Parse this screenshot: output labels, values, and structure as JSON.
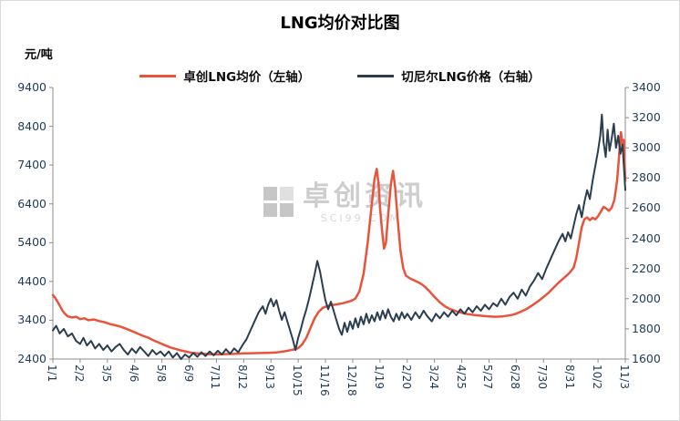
{
  "title": "LNG均价对比图",
  "y_unit_label": "元/吨",
  "legend": [
    {
      "label": "卓创LNG均价（左轴）",
      "color": "#e8533b"
    },
    {
      "label": "切尼尔LNG价格（右轴）",
      "color": "#2a3e50"
    }
  ],
  "watermark": {
    "text": "卓创资讯",
    "subtext": "SCI99.COM"
  },
  "chart_data": {
    "type": "line",
    "title": "LNG均价对比图",
    "ylabel_left": "元/吨",
    "legend_position": "top",
    "grid": false,
    "x_tick_labels": [
      "1/1",
      "2/2",
      "3/5",
      "4/6",
      "5/8",
      "6/9",
      "7/11",
      "8/12",
      "9/13",
      "10/15",
      "11/16",
      "12/18",
      "1/19",
      "2/20",
      "3/24",
      "4/25",
      "5/27",
      "6/28",
      "7/30",
      "8/31",
      "10/2",
      "11/3"
    ],
    "left_axis": {
      "min": 2400,
      "max": 9400,
      "ticks": [
        2400,
        3400,
        4400,
        5400,
        6400,
        7400,
        8400,
        9400
      ]
    },
    "right_axis": {
      "min": 1600,
      "max": 3400,
      "ticks": [
        1600,
        1800,
        2000,
        2200,
        2400,
        2600,
        2800,
        3000,
        3200,
        3400
      ]
    },
    "series": [
      {
        "name": "卓创LNG均价（左轴）",
        "axis": "left",
        "color": "#e8533b",
        "points": [
          [
            0,
            4050
          ],
          [
            0.08,
            3980
          ],
          [
            0.15,
            3900
          ],
          [
            0.25,
            3780
          ],
          [
            0.35,
            3650
          ],
          [
            0.45,
            3560
          ],
          [
            0.55,
            3500
          ],
          [
            0.7,
            3470
          ],
          [
            0.85,
            3490
          ],
          [
            1.0,
            3430
          ],
          [
            1.15,
            3450
          ],
          [
            1.3,
            3400
          ],
          [
            1.5,
            3420
          ],
          [
            1.7,
            3380
          ],
          [
            1.9,
            3350
          ],
          [
            2.1,
            3300
          ],
          [
            2.3,
            3270
          ],
          [
            2.5,
            3230
          ],
          [
            2.7,
            3180
          ],
          [
            2.9,
            3120
          ],
          [
            3.1,
            3060
          ],
          [
            3.3,
            3000
          ],
          [
            3.5,
            2950
          ],
          [
            3.7,
            2880
          ],
          [
            3.9,
            2820
          ],
          [
            4.1,
            2760
          ],
          [
            4.3,
            2700
          ],
          [
            4.5,
            2660
          ],
          [
            4.7,
            2620
          ],
          [
            4.9,
            2590
          ],
          [
            5.1,
            2560
          ],
          [
            5.3,
            2545
          ],
          [
            5.5,
            2535
          ],
          [
            5.8,
            2525
          ],
          [
            6.1,
            2520
          ],
          [
            6.4,
            2530
          ],
          [
            6.7,
            2535
          ],
          [
            7.0,
            2545
          ],
          [
            7.3,
            2550
          ],
          [
            7.6,
            2555
          ],
          [
            7.9,
            2560
          ],
          [
            8.2,
            2570
          ],
          [
            8.5,
            2600
          ],
          [
            8.8,
            2640
          ],
          [
            9.0,
            2680
          ],
          [
            9.15,
            2780
          ],
          [
            9.3,
            2950
          ],
          [
            9.45,
            3200
          ],
          [
            9.6,
            3450
          ],
          [
            9.75,
            3620
          ],
          [
            9.9,
            3720
          ],
          [
            10.05,
            3760
          ],
          [
            10.2,
            3790
          ],
          [
            10.35,
            3800
          ],
          [
            10.5,
            3820
          ],
          [
            10.65,
            3840
          ],
          [
            10.8,
            3870
          ],
          [
            10.95,
            3900
          ],
          [
            11.1,
            3960
          ],
          [
            11.25,
            4150
          ],
          [
            11.4,
            4600
          ],
          [
            11.55,
            5400
          ],
          [
            11.7,
            6400
          ],
          [
            11.8,
            7050
          ],
          [
            11.88,
            7300
          ],
          [
            11.95,
            6900
          ],
          [
            12.0,
            6300
          ],
          [
            12.08,
            5700
          ],
          [
            12.15,
            5250
          ],
          [
            12.22,
            5400
          ],
          [
            12.3,
            6100
          ],
          [
            12.4,
            6900
          ],
          [
            12.48,
            7250
          ],
          [
            12.56,
            6800
          ],
          [
            12.65,
            6000
          ],
          [
            12.75,
            5200
          ],
          [
            12.85,
            4750
          ],
          [
            12.95,
            4550
          ],
          [
            13.1,
            4480
          ],
          [
            13.25,
            4430
          ],
          [
            13.4,
            4380
          ],
          [
            13.55,
            4320
          ],
          [
            13.7,
            4230
          ],
          [
            13.85,
            4120
          ],
          [
            14.0,
            4000
          ],
          [
            14.2,
            3860
          ],
          [
            14.4,
            3750
          ],
          [
            14.6,
            3680
          ],
          [
            14.8,
            3630
          ],
          [
            15.0,
            3590
          ],
          [
            15.2,
            3560
          ],
          [
            15.5,
            3530
          ],
          [
            15.8,
            3510
          ],
          [
            16.0,
            3500
          ],
          [
            16.2,
            3490
          ],
          [
            16.5,
            3500
          ],
          [
            16.8,
            3530
          ],
          [
            17.0,
            3570
          ],
          [
            17.2,
            3630
          ],
          [
            17.4,
            3700
          ],
          [
            17.6,
            3790
          ],
          [
            17.8,
            3890
          ],
          [
            18.0,
            4000
          ],
          [
            18.2,
            4120
          ],
          [
            18.4,
            4260
          ],
          [
            18.6,
            4400
          ],
          [
            18.8,
            4520
          ],
          [
            18.95,
            4620
          ],
          [
            19.1,
            4750
          ],
          [
            19.2,
            5000
          ],
          [
            19.3,
            5400
          ],
          [
            19.4,
            5800
          ],
          [
            19.5,
            6000
          ],
          [
            19.6,
            6050
          ],
          [
            19.7,
            5980
          ],
          [
            19.8,
            6040
          ],
          [
            19.9,
            6000
          ],
          [
            20.0,
            6080
          ],
          [
            20.1,
            6200
          ],
          [
            20.2,
            6320
          ],
          [
            20.3,
            6280
          ],
          [
            20.4,
            6220
          ],
          [
            20.5,
            6300
          ],
          [
            20.6,
            6500
          ],
          [
            20.7,
            7000
          ],
          [
            20.78,
            7700
          ],
          [
            20.84,
            8250
          ],
          [
            20.9,
            7900
          ],
          [
            20.94,
            8050
          ],
          [
            21.0,
            7000
          ]
        ]
      },
      {
        "name": "切尼尔LNG价格（右轴）",
        "axis": "right",
        "color": "#2a3e50",
        "points": [
          [
            0,
            1790
          ],
          [
            0.12,
            1820
          ],
          [
            0.25,
            1770
          ],
          [
            0.4,
            1800
          ],
          [
            0.55,
            1750
          ],
          [
            0.7,
            1770
          ],
          [
            0.85,
            1720
          ],
          [
            1.0,
            1700
          ],
          [
            1.12,
            1740
          ],
          [
            1.25,
            1690
          ],
          [
            1.4,
            1720
          ],
          [
            1.55,
            1670
          ],
          [
            1.7,
            1700
          ],
          [
            1.85,
            1660
          ],
          [
            2.0,
            1690
          ],
          [
            2.15,
            1650
          ],
          [
            2.3,
            1680
          ],
          [
            2.45,
            1700
          ],
          [
            2.6,
            1660
          ],
          [
            2.75,
            1630
          ],
          [
            2.9,
            1670
          ],
          [
            3.05,
            1640
          ],
          [
            3.2,
            1680
          ],
          [
            3.35,
            1650
          ],
          [
            3.5,
            1620
          ],
          [
            3.65,
            1660
          ],
          [
            3.8,
            1630
          ],
          [
            3.95,
            1650
          ],
          [
            4.1,
            1620
          ],
          [
            4.25,
            1650
          ],
          [
            4.4,
            1610
          ],
          [
            4.55,
            1640
          ],
          [
            4.7,
            1600
          ],
          [
            4.85,
            1630
          ],
          [
            5.0,
            1610
          ],
          [
            5.15,
            1640
          ],
          [
            5.3,
            1615
          ],
          [
            5.45,
            1645
          ],
          [
            5.6,
            1620
          ],
          [
            5.75,
            1650
          ],
          [
            5.9,
            1625
          ],
          [
            6.05,
            1655
          ],
          [
            6.2,
            1630
          ],
          [
            6.35,
            1665
          ],
          [
            6.5,
            1635
          ],
          [
            6.65,
            1670
          ],
          [
            6.8,
            1645
          ],
          [
            6.95,
            1690
          ],
          [
            7.1,
            1730
          ],
          [
            7.25,
            1790
          ],
          [
            7.4,
            1850
          ],
          [
            7.55,
            1910
          ],
          [
            7.7,
            1950
          ],
          [
            7.8,
            1900
          ],
          [
            7.9,
            1960
          ],
          [
            8.0,
            2000
          ],
          [
            8.1,
            1950
          ],
          [
            8.2,
            1990
          ],
          [
            8.3,
            1920
          ],
          [
            8.4,
            1860
          ],
          [
            8.5,
            1910
          ],
          [
            8.6,
            1850
          ],
          [
            8.7,
            1790
          ],
          [
            8.8,
            1730
          ],
          [
            8.9,
            1660
          ],
          [
            9.0,
            1740
          ],
          [
            9.1,
            1800
          ],
          [
            9.2,
            1870
          ],
          [
            9.3,
            1930
          ],
          [
            9.4,
            2000
          ],
          [
            9.5,
            2080
          ],
          [
            9.6,
            2160
          ],
          [
            9.7,
            2250
          ],
          [
            9.8,
            2180
          ],
          [
            9.9,
            2080
          ],
          [
            10.0,
            1990
          ],
          [
            10.1,
            1930
          ],
          [
            10.2,
            1980
          ],
          [
            10.3,
            1920
          ],
          [
            10.4,
            1860
          ],
          [
            10.5,
            1800
          ],
          [
            10.6,
            1760
          ],
          [
            10.7,
            1840
          ],
          [
            10.8,
            1780
          ],
          [
            10.9,
            1850
          ],
          [
            11.0,
            1800
          ],
          [
            11.1,
            1870
          ],
          [
            11.2,
            1810
          ],
          [
            11.3,
            1880
          ],
          [
            11.4,
            1830
          ],
          [
            11.5,
            1900
          ],
          [
            11.6,
            1840
          ],
          [
            11.7,
            1890
          ],
          [
            11.8,
            1850
          ],
          [
            11.9,
            1910
          ],
          [
            12.0,
            1860
          ],
          [
            12.1,
            1920
          ],
          [
            12.2,
            1870
          ],
          [
            12.3,
            1930
          ],
          [
            12.4,
            1880
          ],
          [
            12.5,
            1850
          ],
          [
            12.6,
            1900
          ],
          [
            12.7,
            1860
          ],
          [
            12.8,
            1910
          ],
          [
            12.9,
            1870
          ],
          [
            13.0,
            1900
          ],
          [
            13.15,
            1860
          ],
          [
            13.3,
            1910
          ],
          [
            13.45,
            1870
          ],
          [
            13.6,
            1920
          ],
          [
            13.75,
            1880
          ],
          [
            13.9,
            1850
          ],
          [
            14.05,
            1900
          ],
          [
            14.2,
            1870
          ],
          [
            14.35,
            1910
          ],
          [
            14.5,
            1880
          ],
          [
            14.65,
            1920
          ],
          [
            14.8,
            1890
          ],
          [
            14.95,
            1930
          ],
          [
            15.1,
            1900
          ],
          [
            15.25,
            1940
          ],
          [
            15.4,
            1910
          ],
          [
            15.55,
            1950
          ],
          [
            15.7,
            1920
          ],
          [
            15.85,
            1960
          ],
          [
            16.0,
            1930
          ],
          [
            16.15,
            1970
          ],
          [
            16.3,
            1950
          ],
          [
            16.45,
            2000
          ],
          [
            16.6,
            1960
          ],
          [
            16.75,
            2010
          ],
          [
            16.9,
            2040
          ],
          [
            17.05,
            2000
          ],
          [
            17.2,
            2060
          ],
          [
            17.35,
            2020
          ],
          [
            17.5,
            2080
          ],
          [
            17.65,
            2120
          ],
          [
            17.8,
            2170
          ],
          [
            17.95,
            2130
          ],
          [
            18.1,
            2200
          ],
          [
            18.25,
            2260
          ],
          [
            18.4,
            2320
          ],
          [
            18.55,
            2380
          ],
          [
            18.7,
            2430
          ],
          [
            18.8,
            2380
          ],
          [
            18.9,
            2440
          ],
          [
            19.0,
            2400
          ],
          [
            19.1,
            2480
          ],
          [
            19.2,
            2560
          ],
          [
            19.3,
            2620
          ],
          [
            19.4,
            2540
          ],
          [
            19.5,
            2640
          ],
          [
            19.6,
            2720
          ],
          [
            19.7,
            2660
          ],
          [
            19.8,
            2780
          ],
          [
            19.9,
            2880
          ],
          [
            20.0,
            2980
          ],
          [
            20.08,
            3080
          ],
          [
            20.14,
            3220
          ],
          [
            20.2,
            3040
          ],
          [
            20.28,
            2940
          ],
          [
            20.35,
            3120
          ],
          [
            20.42,
            2980
          ],
          [
            20.5,
            3060
          ],
          [
            20.58,
            3160
          ],
          [
            20.66,
            3000
          ],
          [
            20.74,
            3080
          ],
          [
            20.82,
            2960
          ],
          [
            20.9,
            3020
          ],
          [
            21.0,
            2720
          ]
        ]
      }
    ]
  }
}
